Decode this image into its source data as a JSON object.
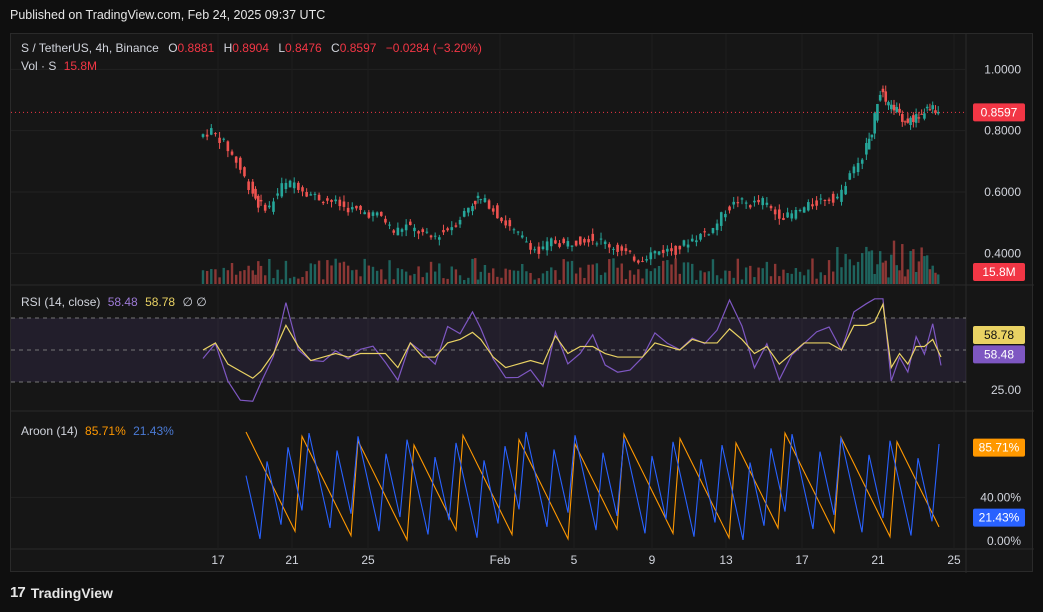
{
  "published": "Published on TradingView.com, Feb 24, 2025 09:37 UTC",
  "symbol_line": {
    "symbol": "S / TetherUS, 4h, Binance",
    "o_label": "O",
    "o": "0.8881",
    "h_label": "H",
    "h": "0.8904",
    "l_label": "L",
    "l": "0.8476",
    "c_label": "C",
    "c": "0.8597",
    "change": "−0.0284 (−3.20%)"
  },
  "vol_line": {
    "label": "Vol · S",
    "value": "15.8M"
  },
  "rsi_legend": {
    "label": "RSI (14, close)",
    "rsi": "58.48",
    "ma": "58.78",
    "extra": "∅ ∅"
  },
  "aroon_legend": {
    "label": "Aroon (14)",
    "up": "85.71%",
    "down": "21.43%"
  },
  "footer": {
    "brand": "TradingView",
    "logo": "17"
  },
  "colors": {
    "up": "#26a69a",
    "down": "#ef5350",
    "rsi": "#7e57c2",
    "rsi_ma": "#e9d263",
    "aroon_up": "#ff9800",
    "aroon_down": "#2962ff",
    "price_badge": "#f23645"
  },
  "chart_data": {
    "type": "candlestick",
    "price_axis": {
      "ticks": [
        "1.0000",
        "0.8000",
        "0.6000",
        "0.4000"
      ],
      "range": [
        0.3,
        1.05
      ]
    },
    "last_price": "0.8597",
    "volume_badge": "15.8M",
    "x_ticks": [
      "17",
      "21",
      "25",
      "Feb",
      "5",
      "9",
      "13",
      "17",
      "21",
      "25"
    ],
    "price_path": [
      [
        0,
        0.78
      ],
      [
        6,
        0.8
      ],
      [
        12,
        0.76
      ],
      [
        18,
        0.7
      ],
      [
        24,
        0.62
      ],
      [
        28,
        0.56
      ],
      [
        34,
        0.55
      ],
      [
        40,
        0.62
      ],
      [
        46,
        0.63
      ],
      [
        52,
        0.6
      ],
      [
        58,
        0.58
      ],
      [
        64,
        0.57
      ],
      [
        70,
        0.55
      ],
      [
        76,
        0.54
      ],
      [
        82,
        0.53
      ],
      [
        88,
        0.52
      ],
      [
        94,
        0.47
      ],
      [
        100,
        0.49
      ],
      [
        106,
        0.47
      ],
      [
        112,
        0.45
      ],
      [
        118,
        0.47
      ],
      [
        124,
        0.5
      ],
      [
        130,
        0.55
      ],
      [
        134,
        0.58
      ],
      [
        140,
        0.56
      ],
      [
        146,
        0.51
      ],
      [
        152,
        0.47
      ],
      [
        158,
        0.44
      ],
      [
        164,
        0.4
      ],
      [
        170,
        0.44
      ],
      [
        176,
        0.43
      ],
      [
        182,
        0.44
      ],
      [
        188,
        0.45
      ],
      [
        194,
        0.44
      ],
      [
        200,
        0.42
      ],
      [
        206,
        0.4
      ],
      [
        212,
        0.38
      ],
      [
        218,
        0.4
      ],
      [
        224,
        0.41
      ],
      [
        230,
        0.41
      ],
      [
        236,
        0.44
      ],
      [
        242,
        0.46
      ],
      [
        248,
        0.48
      ],
      [
        254,
        0.54
      ],
      [
        260,
        0.57
      ],
      [
        266,
        0.56
      ],
      [
        272,
        0.57
      ],
      [
        278,
        0.53
      ],
      [
        284,
        0.52
      ],
      [
        290,
        0.54
      ],
      [
        296,
        0.56
      ],
      [
        302,
        0.58
      ],
      [
        308,
        0.58
      ],
      [
        314,
        0.65
      ],
      [
        320,
        0.72
      ],
      [
        324,
        0.8
      ],
      [
        328,
        0.93
      ],
      [
        332,
        0.88
      ],
      [
        336,
        0.87
      ],
      [
        340,
        0.83
      ],
      [
        344,
        0.84
      ],
      [
        348,
        0.85
      ],
      [
        352,
        0.88
      ],
      [
        356,
        0.86
      ]
    ],
    "rsi": {
      "levels": [
        70,
        50,
        30
      ],
      "axis_ticks": [
        "50.00",
        "25.00"
      ],
      "rsi_value": "58.48",
      "ma_value": "58.78"
    },
    "aroon": {
      "axis_ticks": [
        "40.00%",
        "0.00%"
      ],
      "up": "85.71%",
      "down": "21.43%"
    }
  }
}
